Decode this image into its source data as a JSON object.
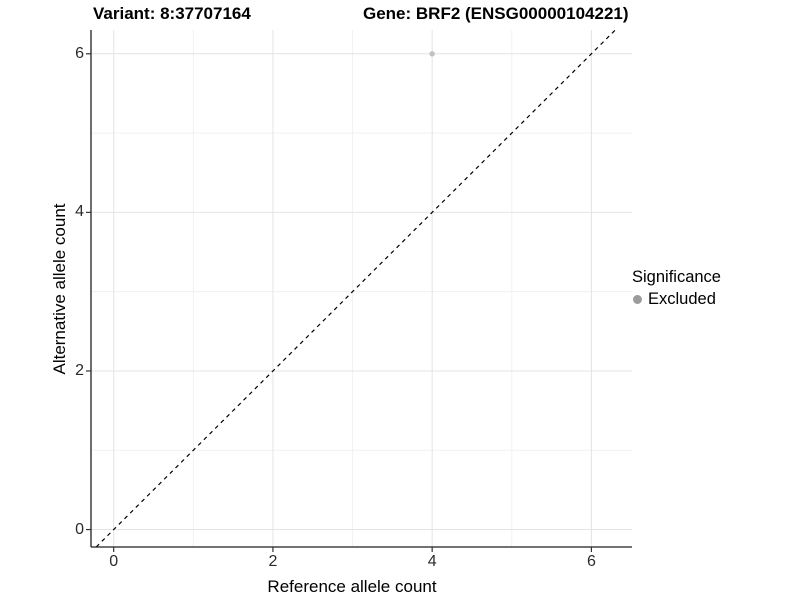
{
  "header": {
    "variant_title": "Variant: 8:37707164",
    "gene_title": "Gene: BRF2 (ENSG00000104221)"
  },
  "colors": {
    "background": "#ffffff",
    "grid_major": "#e4e4e4",
    "grid_minor": "#f1f1f1",
    "axis_line": "#1f1f1f",
    "tick_mark": "#333333",
    "tick_text": "#2b2b2b",
    "title_text": "#000000",
    "point": "#c2c2c2",
    "legend_point": "#9c9c9c",
    "identity_line": "#000000"
  },
  "chart_data": {
    "type": "scatter",
    "title": "Variant: 8:37707164   Gene: BRF2 (ENSG00000104221)",
    "xlabel": "Reference allele count",
    "ylabel": "Alternative allele count",
    "xlim": [
      -0.285,
      6.51
    ],
    "ylim": [
      -0.22,
      6.3
    ],
    "xticks": [
      0,
      2,
      4,
      6
    ],
    "yticks": [
      0,
      2,
      4,
      6
    ],
    "xminor": [
      1,
      3,
      5
    ],
    "yminor": [
      1,
      3,
      5
    ],
    "grid": true,
    "points": [
      {
        "x": 4,
        "y": 6,
        "series": "Excluded"
      }
    ],
    "series": [
      {
        "name": "Excluded",
        "color": "#c2c2c2"
      }
    ],
    "identity_line": {
      "slope": 1,
      "intercept": 0,
      "style": "dashed",
      "color": "#000000"
    },
    "legend": {
      "title": "Significance",
      "position": "right",
      "items": [
        {
          "label": "Excluded",
          "color": "#9c9c9c"
        }
      ]
    }
  }
}
